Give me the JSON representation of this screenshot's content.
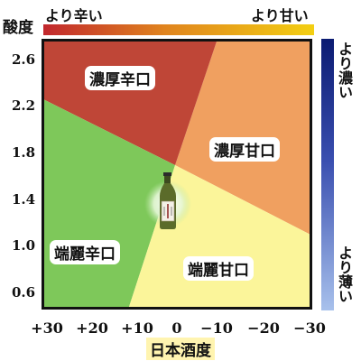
{
  "diagram": {
    "y_axis_title": "酸度",
    "x_axis_title": "日本酒度",
    "sweetness_bar": {
      "left_label": "より辛い",
      "right_label": "より甘い"
    },
    "richness_bar": {
      "top_label": "より濃い",
      "bottom_label": "より薄い"
    },
    "y_ticks": [
      "2.6",
      "2.2",
      "1.8",
      "1.4",
      "1.0",
      "0.6"
    ],
    "x_ticks": [
      "+30",
      "+20",
      "+10",
      "0",
      "−10",
      "−20",
      "−30"
    ],
    "regions": [
      {
        "label": "濃厚辛口",
        "color": "#c0483a"
      },
      {
        "label": "濃厚甘口",
        "color": "#f0a060"
      },
      {
        "label": "端麗辛口",
        "color": "#7ec85a"
      },
      {
        "label": "端麗甘口",
        "color": "#fbf59a"
      }
    ],
    "colors": {
      "frame": "#111111",
      "marker_glow": "#c9efb9"
    }
  }
}
